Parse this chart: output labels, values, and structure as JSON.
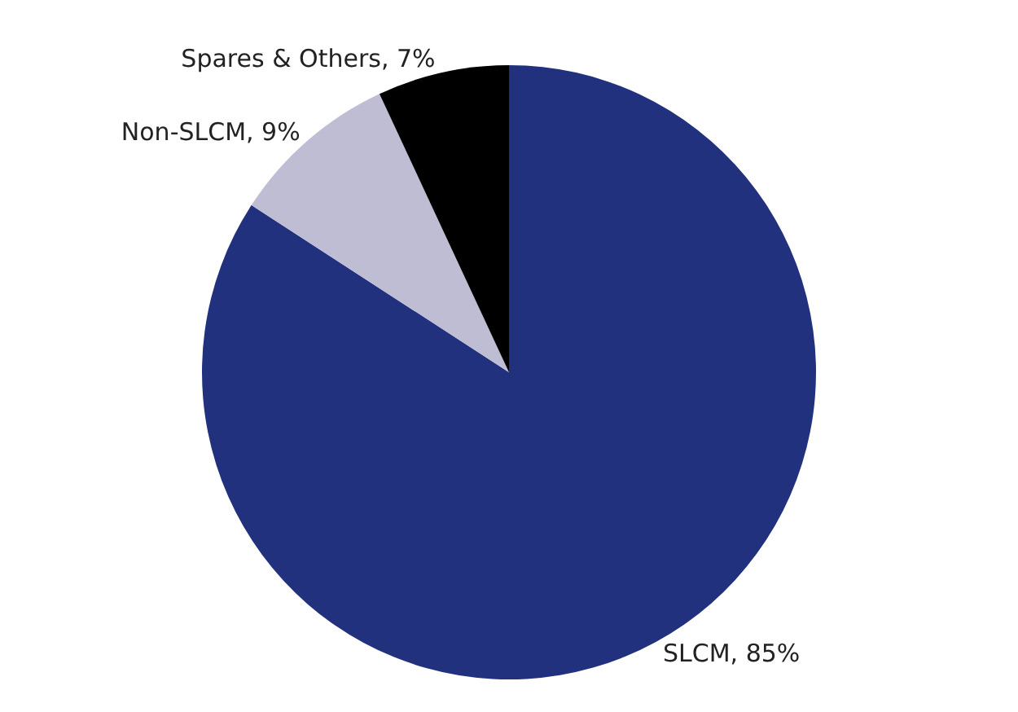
{
  "chart_data": {
    "type": "pie",
    "categories": [
      "SLCM",
      "Non-SLCM",
      "Spares & Others"
    ],
    "values": [
      85,
      9,
      7
    ],
    "value_labels": [
      "85%",
      "9%",
      "7%"
    ],
    "colors": [
      "#21317d",
      "#bebdd4",
      "#000000"
    ],
    "legend": false
  }
}
